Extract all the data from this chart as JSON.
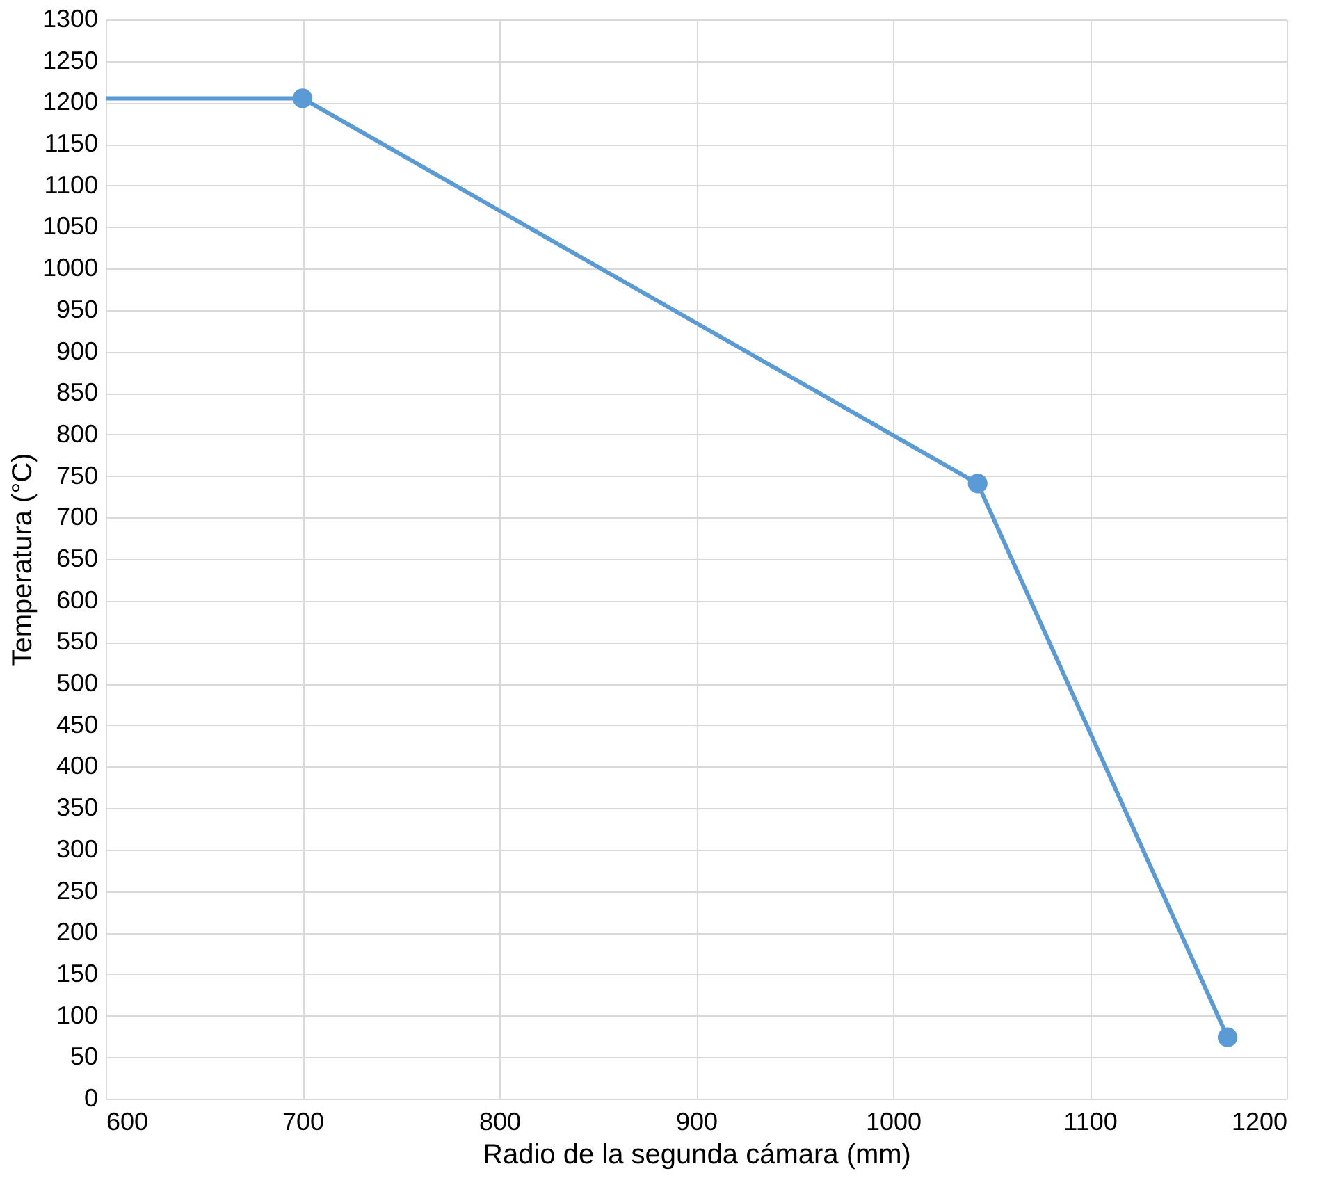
{
  "chart_data": {
    "type": "line",
    "xlabel": "Radio de la segunda cámara (mm)",
    "ylabel": "Temperatura (°C)",
    "xlim": [
      600,
      1200
    ],
    "xticks": [
      600,
      700,
      800,
      900,
      1000,
      1100,
      1200
    ],
    "ylim": [
      0,
      1300
    ],
    "yticks": [
      0,
      50,
      100,
      150,
      200,
      250,
      300,
      350,
      400,
      450,
      500,
      550,
      600,
      650,
      700,
      750,
      800,
      850,
      900,
      950,
      1000,
      1050,
      1100,
      1150,
      1200,
      1250,
      1300
    ],
    "grid": true,
    "legend": false,
    "series": [
      {
        "color": "#5b9bd5",
        "x": [
          600,
          700
        ],
        "values": [
          1205,
          1205
        ]
      },
      {
        "marker": "circle",
        "color": "#5b9bd5",
        "x": [
          700,
          1043,
          1170
        ],
        "values": [
          1205,
          741,
          74
        ]
      }
    ]
  }
}
